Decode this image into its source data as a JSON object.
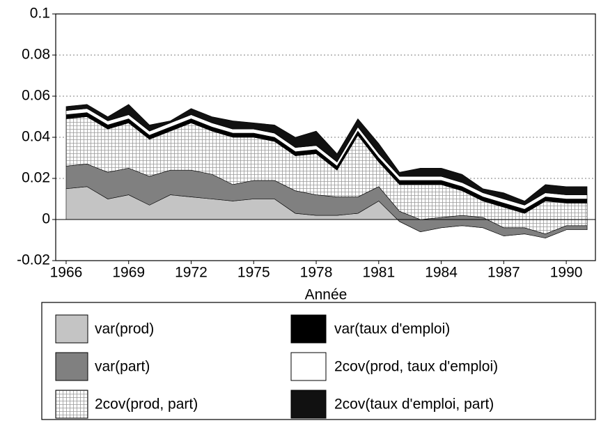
{
  "chart_data": {
    "type": "stacked-area",
    "x_label": "Année",
    "x": [
      1966,
      1967,
      1968,
      1969,
      1970,
      1971,
      1972,
      1973,
      1974,
      1975,
      1976,
      1977,
      1978,
      1979,
      1980,
      1981,
      1982,
      1983,
      1984,
      1985,
      1986,
      1987,
      1988,
      1989,
      1990,
      1991
    ],
    "xlim": [
      1965.5,
      1991.4
    ],
    "xticks": [
      1966,
      1969,
      1972,
      1975,
      1978,
      1981,
      1984,
      1987,
      1990
    ],
    "ylim": [
      -0.02,
      0.1
    ],
    "yticks": [
      -0.02,
      0,
      0.02,
      0.04,
      0.06,
      0.08,
      0.1
    ],
    "grid": true,
    "series": [
      {
        "name": "var(prod)",
        "color": "#c4c4c4",
        "values": [
          0.015,
          0.016,
          0.01,
          0.012,
          0.007,
          0.012,
          0.011,
          0.01,
          0.009,
          0.01,
          0.01,
          0.003,
          0.002,
          0.002,
          0.003,
          0.009,
          -0.001,
          -0.006,
          -0.004,
          -0.003,
          -0.004,
          -0.008,
          -0.007,
          -0.009,
          -0.005,
          -0.005
        ]
      },
      {
        "name": "var(part)",
        "color": "#808080",
        "values": [
          0.011,
          0.011,
          0.013,
          0.013,
          0.014,
          0.012,
          0.013,
          0.012,
          0.008,
          0.009,
          0.009,
          0.011,
          0.01,
          0.009,
          0.008,
          0.007,
          0.005,
          0.006,
          0.005,
          0.005,
          0.005,
          0.004,
          0.003,
          0.002,
          0.002,
          0.002
        ]
      },
      {
        "name": "2cov(prod, part)",
        "color": "#ffffff",
        "pattern": "grid",
        "values": [
          0.023,
          0.023,
          0.021,
          0.022,
          0.018,
          0.019,
          0.023,
          0.021,
          0.023,
          0.021,
          0.019,
          0.017,
          0.02,
          0.013,
          0.03,
          0.012,
          0.013,
          0.017,
          0.016,
          0.012,
          0.008,
          0.01,
          0.007,
          0.016,
          0.011,
          0.011
        ]
      },
      {
        "name": "var(taux d'emploi)",
        "color": "#000000",
        "values": [
          0.002,
          0.002,
          0.002,
          0.002,
          0.002,
          0.002,
          0.002,
          0.002,
          0.002,
          0.002,
          0.002,
          0.002,
          0.002,
          0.002,
          0.002,
          0.002,
          0.002,
          0.002,
          0.002,
          0.002,
          0.002,
          0.002,
          0.002,
          0.002,
          0.002,
          0.002
        ]
      },
      {
        "name": "2cov(prod, taux d'emploi)",
        "color": "#ffffff",
        "values": [
          0.002,
          0.002,
          0.002,
          0.002,
          0.002,
          0.002,
          0.002,
          0.002,
          0.002,
          0.002,
          0.002,
          0.002,
          0.002,
          0.002,
          0.002,
          0.002,
          0.002,
          0.002,
          0.002,
          0.002,
          0.002,
          0.002,
          0.002,
          0.002,
          0.002,
          0.002
        ]
      },
      {
        "name": "2cov(taux d'emploi, part)",
        "color": "#111111",
        "values": [
          0.002,
          0.002,
          0.002,
          0.005,
          0.003,
          0.001,
          0.003,
          0.003,
          0.004,
          0.003,
          0.004,
          0.005,
          0.007,
          0.004,
          0.004,
          0.005,
          0.002,
          0.004,
          0.004,
          0.004,
          0.002,
          0.003,
          0.002,
          0.004,
          0.004,
          0.004
        ]
      }
    ]
  }
}
